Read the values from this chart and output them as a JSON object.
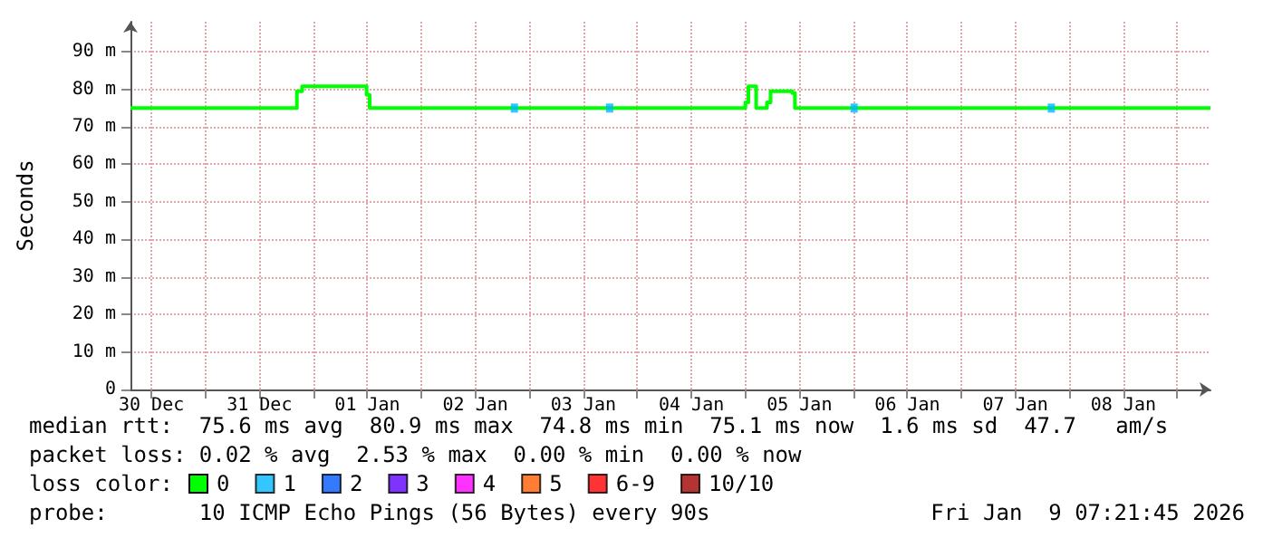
{
  "chart_data": {
    "type": "step",
    "ylabel": "Seconds",
    "legend_title": "loss color:",
    "legend": "bottom left",
    "grid": true,
    "xlim": [
      "2025-12-30T07:21",
      "2026-01-09T07:21"
    ],
    "xticks": [
      {
        "value": "2025-12-30T12:00",
        "label": "30 Dec"
      },
      {
        "value": "2025-12-31T00:00",
        "label": null
      },
      {
        "value": "2025-12-31T12:00",
        "label": "31 Dec"
      },
      {
        "value": "2026-01-01T00:00",
        "label": null
      },
      {
        "value": "2026-01-01T12:00",
        "label": "01 Jan"
      },
      {
        "value": "2026-01-02T00:00",
        "label": null
      },
      {
        "value": "2026-01-02T12:00",
        "label": "02 Jan"
      },
      {
        "value": "2026-01-03T00:00",
        "label": null
      },
      {
        "value": "2026-01-03T12:00",
        "label": "03 Jan"
      },
      {
        "value": "2026-01-04T00:00",
        "label": null
      },
      {
        "value": "2026-01-04T12:00",
        "label": "04 Jan"
      },
      {
        "value": "2026-01-05T00:00",
        "label": null
      },
      {
        "value": "2026-01-05T12:00",
        "label": "05 Jan"
      },
      {
        "value": "2026-01-06T00:00",
        "label": null
      },
      {
        "value": "2026-01-06T12:00",
        "label": "06 Jan"
      },
      {
        "value": "2026-01-07T00:00",
        "label": null
      },
      {
        "value": "2026-01-07T12:00",
        "label": "07 Jan"
      },
      {
        "value": "2026-01-08T00:00",
        "label": null
      },
      {
        "value": "2026-01-08T12:00",
        "label": "08 Jan"
      },
      {
        "value": "2026-01-09T00:00",
        "label": null
      }
    ],
    "ylim": [
      0,
      98
    ],
    "yticks": [
      0,
      {
        "value": 10,
        "label": "10 m"
      },
      {
        "value": 20,
        "label": "20 m"
      },
      {
        "value": 30,
        "label": "30 m"
      },
      {
        "value": 40,
        "label": "40 m"
      },
      {
        "value": 50,
        "label": "50 m"
      },
      {
        "value": 60,
        "label": "60 m"
      },
      {
        "value": 70,
        "label": "70 m"
      },
      {
        "value": 80,
        "label": "80 m"
      },
      {
        "value": 90,
        "label": "90 m"
      }
    ],
    "series": [
      {
        "name": "0",
        "color": "#00ff00",
        "marker": "none",
        "x": [
          "2025-12-30T07:21",
          "2025-12-31T20:20",
          "2025-12-31T21:30",
          "2026-01-01T11:50",
          "2026-01-01T12:30",
          "2026-01-05T00:00",
          "2026-01-05T00:40",
          "2026-01-05T02:24",
          "2026-01-05T04:48",
          "2026-01-05T05:36",
          "2026-01-05T10:24",
          "2026-01-05T11:00",
          "2026-01-09T07:21"
        ],
        "values": [
          75,
          79.5,
          80.8,
          78.5,
          75,
          76.5,
          80.8,
          75,
          76.5,
          79.5,
          79,
          75,
          75
        ]
      },
      {
        "name": "1",
        "color": "#00b8ff",
        "type": "scatter",
        "marker": "square",
        "x": [
          "2026-01-02T20:40",
          "2026-01-03T17:50",
          "2026-01-06T00:10",
          "2026-01-07T20:00"
        ],
        "values": [
          75,
          75,
          75,
          75
        ]
      },
      {
        "name": "2",
        "color": "#0059ff",
        "type": "scatter"
      },
      {
        "name": "3",
        "color": "#5e00ff",
        "type": "scatter"
      },
      {
        "name": "4",
        "color": "#ff00ff",
        "type": "scatter"
      },
      {
        "name": "5",
        "color": "#ff5e00",
        "type": "scatter"
      },
      {
        "name": "6-9",
        "color": "#ff0000",
        "type": "scatter"
      },
      {
        "name": "10/10",
        "color": "#a10000",
        "type": "scatter"
      }
    ],
    "annotations": [
      "median rtt:  75.6 ms avg  80.9 ms max  74.8 ms min  75.1 ms now  1.6 ms sd  47.7   am/s",
      "packet loss: 0.02 % avg  2.53 % max  0.00 % min  0.00 % now",
      "probe:       10 ICMP Echo Pings (56 Bytes) every 90s",
      "Fri Jan  9 07:21:45 2026"
    ]
  }
}
